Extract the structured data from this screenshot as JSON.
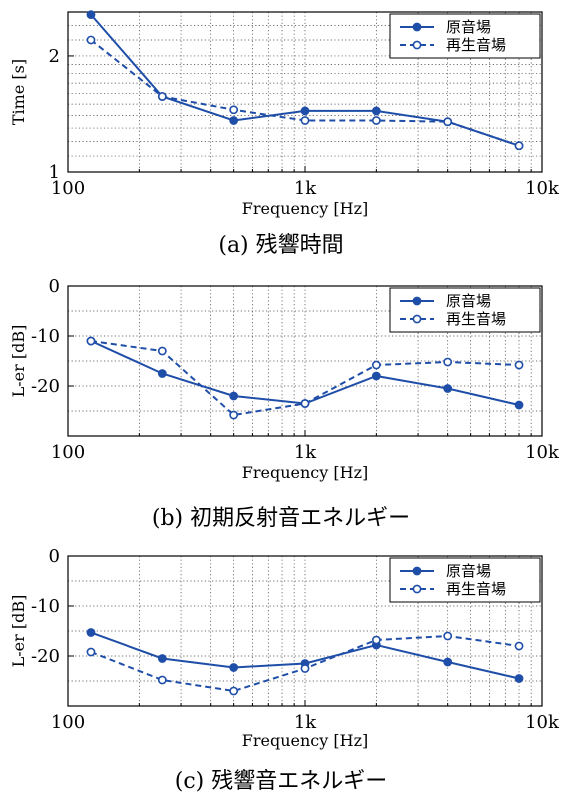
{
  "colors": {
    "series": "#1f4ea8"
  },
  "chart_data": [
    {
      "type": "line",
      "caption": "(a) 残響時間",
      "xlabel": "Frequency [Hz]",
      "ylabel": "Time [s]",
      "xscale": "log",
      "yscale": "log",
      "xlim": [
        100,
        10000
      ],
      "ylim": [
        1,
        2.6
      ],
      "xticks": [
        {
          "v": 100,
          "t": "100"
        },
        {
          "v": 1000,
          "t": "1k"
        },
        {
          "v": 10000,
          "t": "10k"
        }
      ],
      "yticks": [
        {
          "v": 1,
          "t": "1"
        },
        {
          "v": 2,
          "t": "2"
        }
      ],
      "x": [
        125,
        250,
        500,
        1000,
        2000,
        4000,
        8000
      ],
      "legend_position": "top-right",
      "grid": true,
      "series": [
        {
          "name": "原音場",
          "style": "solid",
          "marker": "filled",
          "values": [
            2.56,
            1.57,
            1.36,
            1.44,
            1.44,
            1.35,
            1.17
          ]
        },
        {
          "name": "再生音場",
          "style": "dashed",
          "marker": "open",
          "values": [
            2.2,
            1.57,
            1.45,
            1.36,
            1.36,
            1.35,
            1.17
          ]
        }
      ]
    },
    {
      "type": "line",
      "caption": "(b) 初期反射音エネルギー",
      "xlabel": "Frequency [Hz]",
      "ylabel": "L-er [dB]",
      "xscale": "log",
      "xlim": [
        100,
        10000
      ],
      "ylim": [
        -30,
        0
      ],
      "xticks": [
        {
          "v": 100,
          "t": "100"
        },
        {
          "v": 1000,
          "t": "1k"
        },
        {
          "v": 10000,
          "t": "10k"
        }
      ],
      "yticks": [
        {
          "v": 0,
          "t": "0"
        },
        {
          "v": -10,
          "t": "-10"
        },
        {
          "v": -20,
          "t": "-20"
        }
      ],
      "x": [
        125,
        250,
        500,
        1000,
        2000,
        4000,
        8000
      ],
      "legend_position": "top-right",
      "grid": true,
      "series": [
        {
          "name": "原音場",
          "style": "solid",
          "marker": "filled",
          "values": [
            -11,
            -17.5,
            -22,
            -23.5,
            -18,
            -20.5,
            -23.8
          ]
        },
        {
          "name": "再生音場",
          "style": "dashed",
          "marker": "open",
          "values": [
            -11,
            -13,
            -25.8,
            -23.5,
            -15.8,
            -15.2,
            -15.8
          ]
        }
      ]
    },
    {
      "type": "line",
      "caption": "(c) 残響音エネルギー",
      "xlabel": "Frequency [Hz]",
      "ylabel": "L-er [dB]",
      "xscale": "log",
      "xlim": [
        100,
        10000
      ],
      "ylim": [
        -30,
        0
      ],
      "xticks": [
        {
          "v": 100,
          "t": "100"
        },
        {
          "v": 1000,
          "t": "1k"
        },
        {
          "v": 10000,
          "t": "10k"
        }
      ],
      "yticks": [
        {
          "v": 0,
          "t": "0"
        },
        {
          "v": -10,
          "t": "-10"
        },
        {
          "v": -20,
          "t": "-20"
        }
      ],
      "x": [
        125,
        250,
        500,
        1000,
        2000,
        4000,
        8000
      ],
      "legend_position": "top-right",
      "grid": true,
      "series": [
        {
          "name": "原音場",
          "style": "solid",
          "marker": "filled",
          "values": [
            -15.3,
            -20.5,
            -22.3,
            -21.5,
            -17.8,
            -21.2,
            -24.5
          ]
        },
        {
          "name": "再生音場",
          "style": "dashed",
          "marker": "open",
          "values": [
            -19.2,
            -24.8,
            -27,
            -22.5,
            -16.8,
            -16,
            -18
          ]
        }
      ]
    }
  ]
}
